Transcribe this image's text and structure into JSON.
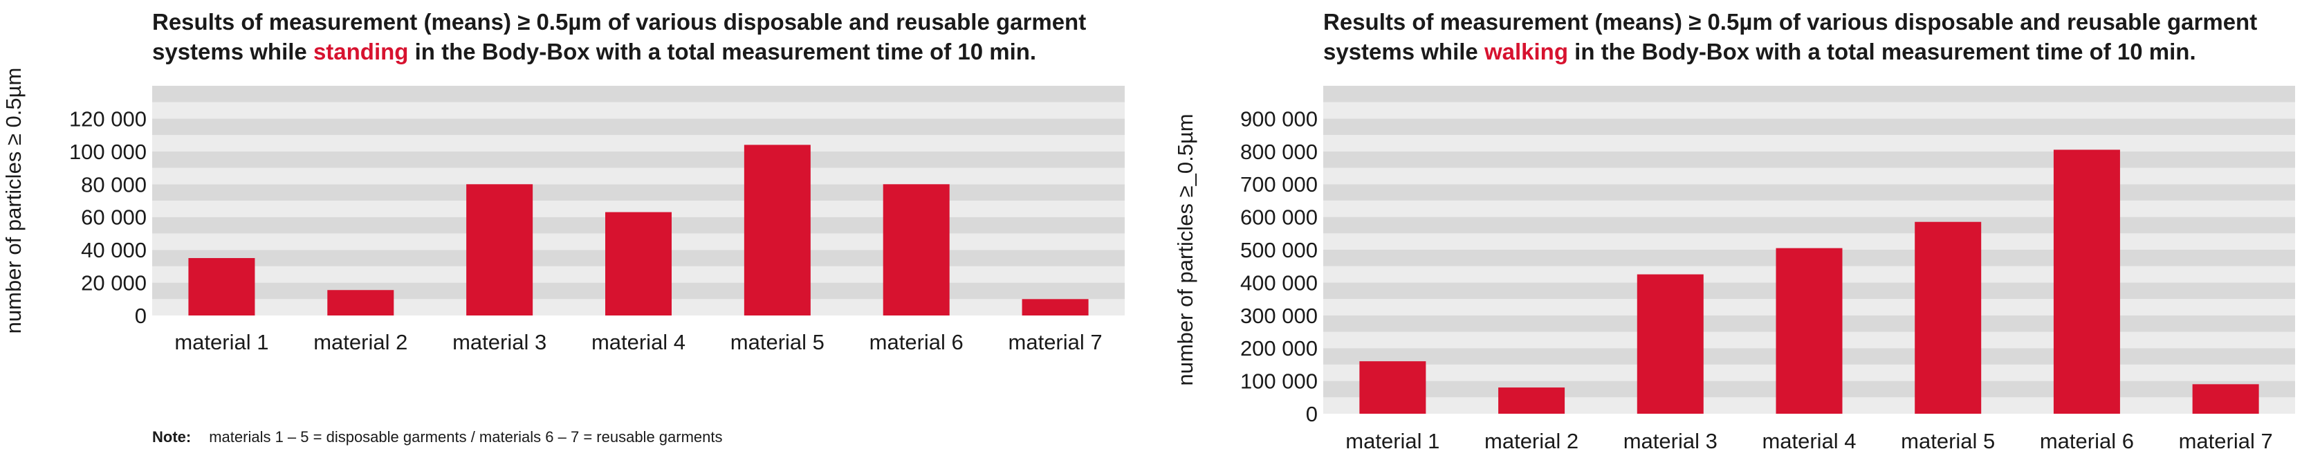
{
  "charts": [
    {
      "title_before": "Results of measurement (means) ≥ 0.5µm of various disposable and reusable garment",
      "title_line2_before": "systems while ",
      "title_highlight": "standing",
      "title_line2_after": " in the Body-Box with a total measurement time of 10 min.",
      "ylabel": "number of particles ≥ 0.5µm"
    },
    {
      "title_before": "Results of measurement (means) ≥ 0.5µm of various disposable and reusable garment",
      "title_line2_before": "systems while ",
      "title_highlight": "walking",
      "title_line2_after": " in the Body-Box with a total measurement time of 10 min.",
      "ylabel": "number of particles ≥_0.5µm"
    }
  ],
  "note": {
    "label": "Note:",
    "text": "materials 1 – 5 = disposable garments / materials 6 – 7 = reusable garments"
  },
  "colors": {
    "bar": "#d7122f",
    "highlight": "#d7122f",
    "band_light": "#ececec",
    "band_dark": "#d9d9d9"
  },
  "chart_data": [
    {
      "type": "bar",
      "title": "Results of measurement (means) ≥ 0.5µm of various disposable and reusable garment systems while standing in the Body-Box with a total measurement time of 10 min.",
      "xlabel": "",
      "ylabel": "number of particles ≥ 0.5µm",
      "categories": [
        "material 1",
        "material 2",
        "material 3",
        "material 4",
        "material 5",
        "material 6",
        "material 7"
      ],
      "values": [
        35000,
        15500,
        80000,
        63000,
        104000,
        80000,
        10000
      ],
      "ylim": [
        0,
        140000
      ],
      "yticks": [
        0,
        20000,
        40000,
        60000,
        80000,
        100000,
        120000
      ],
      "ytick_labels": [
        "0",
        "20 000",
        "40 000",
        "60 000",
        "80 000",
        "100 000",
        "120 000"
      ],
      "grid": "alternating horizontal bands",
      "legend": "none"
    },
    {
      "type": "bar",
      "title": "Results of measurement (means) ≥ 0.5µm of various disposable and reusable garment systems while walking in the Body-Box with a total measurement time of 10 min.",
      "xlabel": "",
      "ylabel": "number of particles ≥_0.5µm",
      "categories": [
        "material 1",
        "material 2",
        "material 3",
        "material 4",
        "material 5",
        "material 6",
        "material 7"
      ],
      "values": [
        160000,
        80000,
        425000,
        505000,
        585000,
        805000,
        90000
      ],
      "ylim": [
        0,
        1000000
      ],
      "yticks": [
        0,
        100000,
        200000,
        300000,
        400000,
        500000,
        600000,
        700000,
        800000,
        900000
      ],
      "ytick_labels": [
        "0",
        "100 000",
        "200 000",
        "300 000",
        "400 000",
        "500 000",
        "600 000",
        "700 000",
        "800 000",
        "900 000"
      ],
      "grid": "alternating horizontal bands",
      "legend": "none"
    }
  ]
}
